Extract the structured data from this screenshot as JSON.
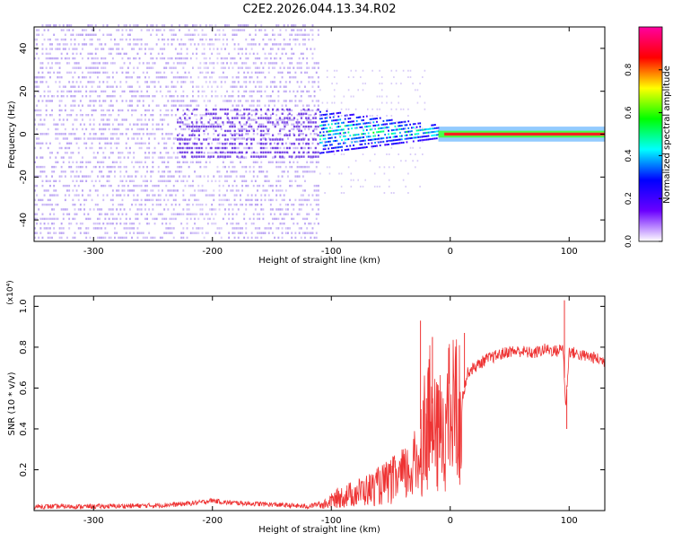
{
  "title": "C2E2.2026.044.13.34.R02",
  "chart_data": [
    {
      "type": "heatmap",
      "xlabel": "Height of straight line (km)",
      "ylabel": "Frequency (Hz)",
      "xlim": [
        -350,
        130
      ],
      "ylim": [
        -50,
        50
      ],
      "xticks": [
        -300,
        -200,
        -100,
        0,
        100
      ],
      "yticks": [
        -40,
        -20,
        0,
        20,
        40
      ],
      "colorbar": {
        "label": "Normalized spectral amplitude",
        "range": [
          0,
          1
        ],
        "ticks": [
          "0.0",
          "0.2",
          "0.4",
          "0.6",
          "0.8"
        ],
        "tick_values": [
          0.0,
          0.2,
          0.4,
          0.6,
          0.8
        ],
        "colors": [
          "#ffffff",
          "#6a00ff",
          "#0000ff",
          "#00ffff",
          "#00ff00",
          "#ffff00",
          "#ff0000",
          "#ff00a0"
        ]
      },
      "features": [
        {
          "name": "diffuse noise",
          "x_range": [
            -350,
            -110
          ],
          "freq_range": [
            -50,
            50
          ],
          "amplitude": 0.1
        },
        {
          "name": "transition band",
          "x_range": [
            -110,
            -10
          ],
          "freq_halfwidth": [
            10,
            3
          ],
          "amplitude": 0.35
        },
        {
          "name": "zero-frequency line",
          "x_range": [
            -10,
            130
          ],
          "freq": 0,
          "amplitude": 0.9
        }
      ]
    },
    {
      "type": "line",
      "xlabel": "Height of straight line (km)",
      "ylabel": "SNR (10 * v/v)",
      "scale_label": "(x10⁴)",
      "xlim": [
        -350,
        130
      ],
      "ylim": [
        0,
        1.05
      ],
      "xticks": [
        -300,
        -200,
        -100,
        0,
        100
      ],
      "yticks": [
        0.2,
        0.4,
        0.6,
        0.8,
        1.0
      ],
      "ytick_labels": [
        "0.2",
        "0.4",
        "0.6",
        "0.8",
        "1.0"
      ],
      "color": "#ee3333",
      "series": [
        {
          "name": "SNR",
          "x": [
            -350,
            -300,
            -250,
            -230,
            -210,
            -200,
            -190,
            -150,
            -120,
            -105,
            -95,
            -85,
            -75,
            -65,
            -55,
            -45,
            -35,
            -28,
            -22,
            -18,
            -12,
            -8,
            -4,
            0,
            5,
            10,
            15,
            20,
            30,
            40,
            50,
            60,
            70,
            80,
            90,
            95,
            97,
            100,
            110,
            120,
            130
          ],
          "y": [
            0.02,
            0.02,
            0.025,
            0.03,
            0.04,
            0.05,
            0.04,
            0.03,
            0.02,
            0.04,
            0.08,
            0.1,
            0.12,
            0.14,
            0.17,
            0.2,
            0.24,
            0.3,
            0.5,
            0.6,
            0.45,
            0.5,
            0.55,
            0.6,
            0.65,
            0.55,
            0.68,
            0.7,
            0.74,
            0.76,
            0.78,
            0.78,
            0.77,
            0.79,
            0.78,
            0.8,
            0.5,
            0.78,
            0.76,
            0.75,
            0.73
          ]
        }
      ],
      "spikes": [
        {
          "x": -25,
          "y": 0.93
        },
        {
          "x": -20,
          "y": 0.15
        },
        {
          "x": -15,
          "y": 0.85
        },
        {
          "x": 12,
          "y": 0.87
        },
        {
          "x": 96,
          "y": 1.03
        },
        {
          "x": 98,
          "y": 0.4
        }
      ]
    }
  ]
}
